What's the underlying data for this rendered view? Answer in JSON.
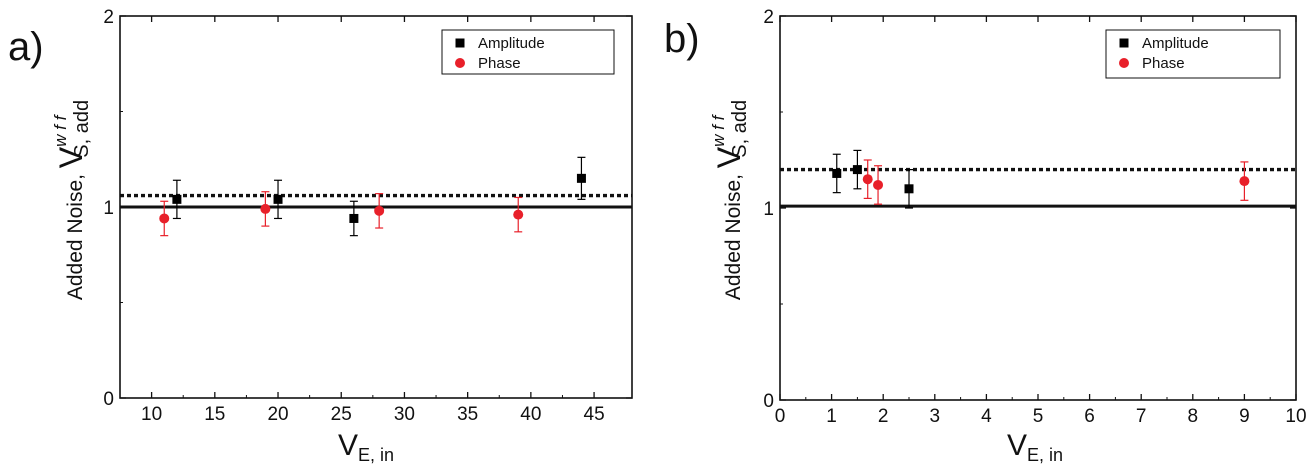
{
  "chart_data": [
    {
      "type": "scatter",
      "panel_label": "a)",
      "xlabel_main": "V",
      "xlabel_sub": "E, in",
      "ylabel_prefix": "Added Noise, ",
      "ylabel_main": "V",
      "ylabel_sup": "w f f",
      "ylabel_sub": "S, add",
      "xlim": [
        7.5,
        48
      ],
      "ylim": [
        0,
        2
      ],
      "xticks": [
        10,
        15,
        20,
        25,
        30,
        35,
        40,
        45
      ],
      "yticks": [
        0,
        1,
        2
      ],
      "grid": false,
      "legend_position": "top-right",
      "reference_lines": [
        {
          "style": "solid",
          "y": 1.0
        },
        {
          "style": "dotted",
          "y": 1.06
        }
      ],
      "series": [
        {
          "name": "Amplitude",
          "marker": "square",
          "color": "#000000",
          "x": [
            12,
            20,
            26,
            44
          ],
          "y": [
            1.04,
            1.04,
            0.94,
            1.15
          ],
          "err": [
            0.1,
            0.1,
            0.09,
            0.11
          ]
        },
        {
          "name": "Phase",
          "marker": "circle",
          "color": "#e8202a",
          "x": [
            11,
            19,
            28,
            39
          ],
          "y": [
            0.94,
            0.99,
            0.98,
            0.96
          ],
          "err": [
            0.09,
            0.09,
            0.09,
            0.09
          ]
        }
      ]
    },
    {
      "type": "scatter",
      "panel_label": "b)",
      "xlabel_main": "V",
      "xlabel_sub": "E, in",
      "ylabel_prefix": "Added Noise, ",
      "ylabel_main": "V",
      "ylabel_sup": "w f f",
      "ylabel_sub": "S, add",
      "xlim": [
        0,
        10
      ],
      "ylim": [
        0,
        2
      ],
      "xticks": [
        0,
        1,
        2,
        3,
        4,
        5,
        6,
        7,
        8,
        9,
        10
      ],
      "yticks": [
        0,
        1,
        2
      ],
      "grid": false,
      "legend_position": "top-right",
      "reference_lines": [
        {
          "style": "solid",
          "y": 1.01
        },
        {
          "style": "dotted",
          "y": 1.2
        }
      ],
      "series": [
        {
          "name": "Amplitude",
          "marker": "square",
          "color": "#000000",
          "x": [
            1.1,
            1.5,
            2.5
          ],
          "y": [
            1.18,
            1.2,
            1.1
          ],
          "err": [
            0.1,
            0.1,
            0.1
          ]
        },
        {
          "name": "Phase",
          "marker": "circle",
          "color": "#e8202a",
          "x": [
            1.7,
            1.9,
            9.0
          ],
          "y": [
            1.15,
            1.12,
            1.14
          ],
          "err": [
            0.1,
            0.1,
            0.1
          ]
        }
      ]
    }
  ]
}
